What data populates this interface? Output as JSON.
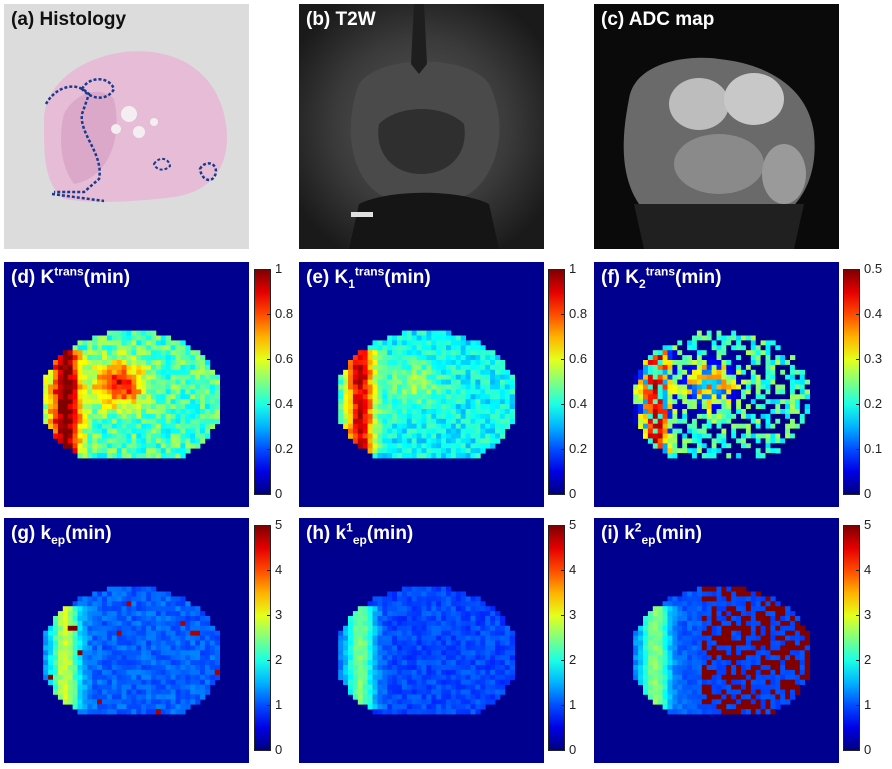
{
  "figure": {
    "panels": [
      {
        "id": "a",
        "prefix": "(a) ",
        "name": "Histology",
        "kind": "histology"
      },
      {
        "id": "b",
        "prefix": "(b) ",
        "name": "T2W",
        "kind": "t2w"
      },
      {
        "id": "c",
        "prefix": "(c) ",
        "name": "ADC map",
        "kind": "adc"
      },
      {
        "id": "d",
        "prefix": "(d) ",
        "base": "K",
        "sub": "",
        "sup": "trans",
        "suffix": "(min)",
        "kind": "ktrans",
        "colorbar": {
          "ticks": [
            "1",
            "0.8",
            "0.6",
            "0.4",
            "0.2",
            "0"
          ]
        }
      },
      {
        "id": "e",
        "prefix": "(e) ",
        "base": "K",
        "sub": "1",
        "sup": "trans",
        "suffix": "(min)",
        "kind": "k1trans",
        "colorbar": {
          "ticks": [
            "1",
            "0.8",
            "0.6",
            "0.4",
            "0.2",
            "0"
          ]
        }
      },
      {
        "id": "f",
        "prefix": "(f) ",
        "base": "K",
        "sub": "2",
        "sup": "trans",
        "suffix": "(min)",
        "kind": "k2trans",
        "colorbar": {
          "ticks": [
            "0.5",
            "0.4",
            "0.3",
            "0.2",
            "0.1",
            "0"
          ]
        }
      },
      {
        "id": "g",
        "prefix": "(g) ",
        "base": "k",
        "sub": "ep",
        "sup": "",
        "suffix": "(min)",
        "kind": "kep",
        "colorbar": {
          "ticks": [
            "5",
            "4",
            "3",
            "2",
            "1",
            "0"
          ]
        }
      },
      {
        "id": "h",
        "prefix": "(h) ",
        "base": "k",
        "sup": "1",
        "sub": "ep",
        "suffix": "(min)",
        "kind": "k1ep",
        "colorbar": {
          "ticks": [
            "5",
            "4",
            "3",
            "2",
            "1",
            "0"
          ]
        }
      },
      {
        "id": "i",
        "prefix": "(i) ",
        "base": "k",
        "sup": "2",
        "sub": "ep",
        "suffix": "(min)",
        "kind": "k2ep",
        "colorbar": {
          "ticks": [
            "5",
            "4",
            "3",
            "2",
            "1",
            "0"
          ]
        }
      }
    ],
    "colormap": "jet",
    "colors": {
      "map_background": "#00008f",
      "colorbar_top": "#7f0000",
      "colorbar_bottom": "#00007f"
    }
  }
}
